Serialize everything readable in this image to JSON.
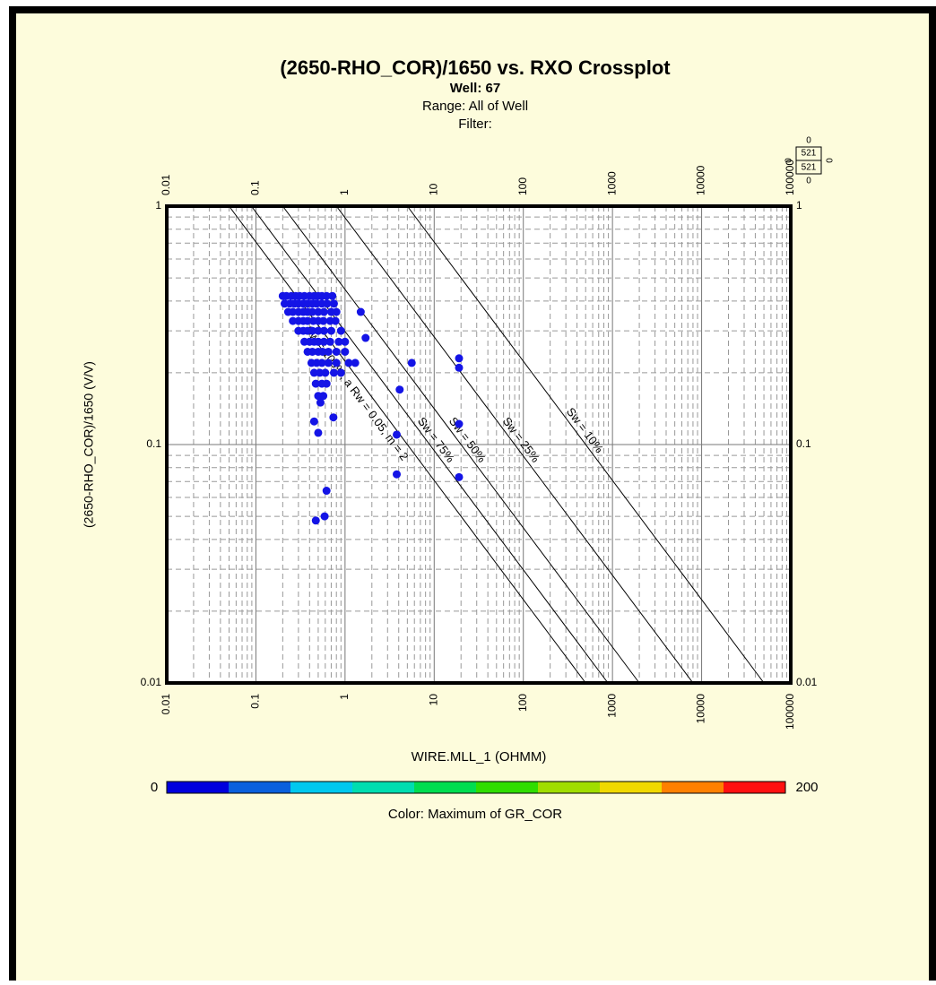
{
  "chart_data": {
    "type": "scatter",
    "title": "(2650-RHO_COR)/1650 vs. RXO Crossplot",
    "subtitle": [
      "Well: 67",
      "Range: All of Well",
      "Filter:"
    ],
    "x_label": "WIRE.MLL_1 (OHMM)",
    "y_label": "(2650-RHO_COR)/1650 (V/V)",
    "xscale": "log",
    "yscale": "log",
    "xlim": [
      0.01,
      100000
    ],
    "ylim": [
      0.01,
      1
    ],
    "xticks": [
      0.01,
      0.1,
      1,
      10,
      100,
      1000,
      10000,
      100000
    ],
    "yticks": [
      0.01,
      0.1,
      1
    ],
    "grid": true,
    "minor_grid": true,
    "color": "#1414e6",
    "x": [
      0.2,
      0.22,
      0.25,
      0.28,
      0.31,
      0.35,
      0.4,
      0.45,
      0.5,
      0.55,
      0.62,
      0.72,
      0.21,
      0.24,
      0.27,
      0.3,
      0.34,
      0.38,
      0.43,
      0.48,
      0.55,
      0.63,
      0.75,
      0.23,
      0.26,
      0.3,
      0.34,
      0.38,
      0.43,
      0.5,
      0.58,
      0.7,
      0.8,
      0.26,
      0.3,
      0.34,
      0.38,
      0.44,
      0.5,
      0.57,
      0.68,
      0.78,
      0.3,
      0.34,
      0.38,
      0.43,
      0.5,
      0.58,
      0.7,
      0.9,
      0.35,
      0.4,
      0.45,
      0.5,
      0.58,
      0.68,
      0.85,
      1.0,
      0.38,
      0.43,
      0.5,
      0.56,
      0.65,
      0.8,
      1.0,
      0.42,
      0.48,
      0.55,
      0.65,
      0.8,
      1.1,
      1.3,
      0.45,
      0.52,
      0.6,
      0.75,
      0.9,
      0.47,
      0.55,
      0.62,
      0.5,
      0.57,
      0.53,
      1.5,
      1.7,
      5.6,
      4.1,
      19,
      19,
      19,
      3.8,
      3.8,
      19,
      0.62,
      0.59,
      0.47,
      0.45,
      0.5,
      0.74
    ],
    "values": [
      0.42,
      0.42,
      0.42,
      0.42,
      0.42,
      0.42,
      0.42,
      0.42,
      0.42,
      0.42,
      0.42,
      0.42,
      0.39,
      0.39,
      0.39,
      0.39,
      0.39,
      0.39,
      0.39,
      0.39,
      0.39,
      0.39,
      0.39,
      0.36,
      0.36,
      0.36,
      0.36,
      0.36,
      0.36,
      0.36,
      0.36,
      0.36,
      0.36,
      0.33,
      0.33,
      0.33,
      0.33,
      0.33,
      0.33,
      0.33,
      0.33,
      0.33,
      0.3,
      0.3,
      0.3,
      0.3,
      0.3,
      0.3,
      0.3,
      0.3,
      0.27,
      0.27,
      0.27,
      0.27,
      0.27,
      0.27,
      0.27,
      0.27,
      0.245,
      0.245,
      0.245,
      0.245,
      0.245,
      0.245,
      0.245,
      0.22,
      0.22,
      0.22,
      0.22,
      0.22,
      0.22,
      0.22,
      0.2,
      0.2,
      0.2,
      0.2,
      0.2,
      0.18,
      0.18,
      0.18,
      0.16,
      0.16,
      0.15,
      0.36,
      0.28,
      0.22,
      0.17,
      0.23,
      0.21,
      0.122,
      0.11,
      0.075,
      0.073,
      0.064,
      0.05,
      0.048,
      0.125,
      0.112,
      0.13
    ],
    "lines": [
      {
        "label": "Sw = 100%, a Rw = 0.05, m = 2",
        "x": [
          0.05,
          500
        ],
        "y": [
          1,
          0.01
        ]
      },
      {
        "label": "Sw = 75%",
        "x": [
          0.089,
          889
        ],
        "y": [
          1,
          0.01
        ]
      },
      {
        "label": "Sw = 50%",
        "x": [
          0.2,
          2000
        ],
        "y": [
          1,
          0.01
        ]
      },
      {
        "label": "Sw = 25%",
        "x": [
          0.8,
          8000
        ],
        "y": [
          1,
          0.01
        ]
      },
      {
        "label": "Sw = 10%",
        "x": [
          5,
          50000
        ],
        "y": [
          1,
          0.01
        ]
      }
    ],
    "colorbar": {
      "min": 0,
      "max": 200,
      "label": "Color: Maximum of GR_COR",
      "colors": [
        "#0000dd",
        "#0a60dd",
        "#00c8ee",
        "#00ddb0",
        "#00dd50",
        "#30dd00",
        "#a0dd00",
        "#f0d800",
        "#ff8000",
        "#ff1010"
      ]
    },
    "point_counts": [
      0,
      521,
      521,
      0,
      0,
      0
    ]
  }
}
